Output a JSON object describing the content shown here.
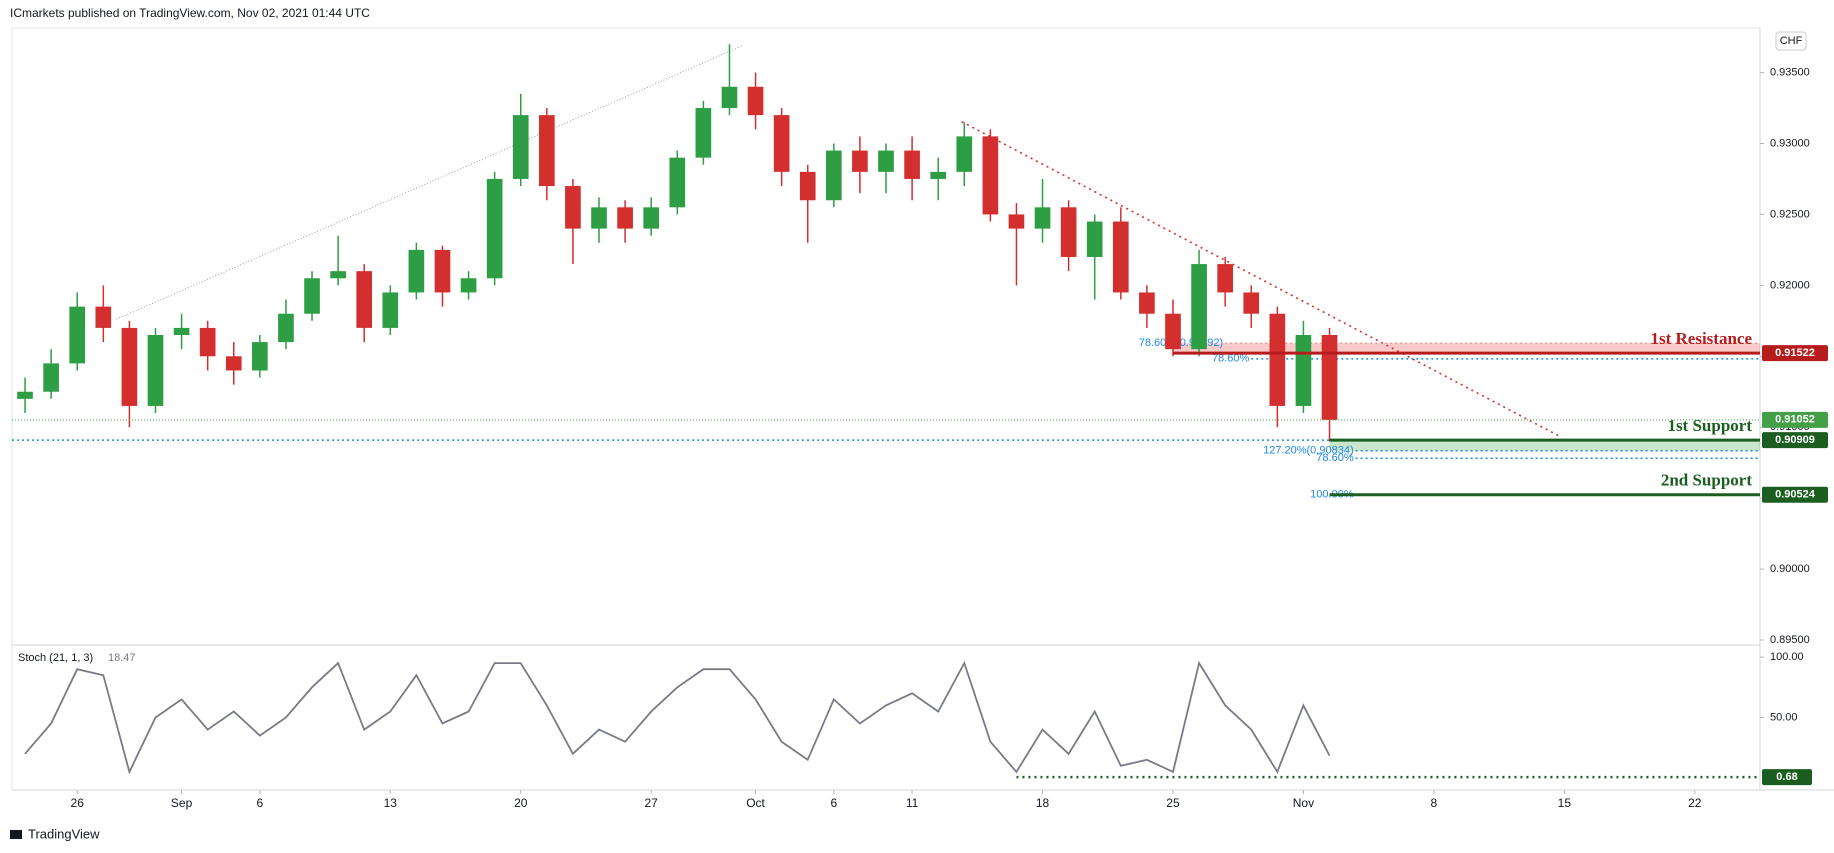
{
  "header": {
    "publisher": "ICmarkets published on TradingView.com, Nov 02, 2021 01:44 UTC",
    "currency": "CHF",
    "brand": "TradingView"
  },
  "chart_data": [
    {
      "type": "candlestick",
      "categories": [
        null,
        null,
        "26",
        null,
        null,
        null,
        "Sep",
        null,
        null,
        "6",
        null,
        null,
        null,
        null,
        "13",
        null,
        null,
        null,
        null,
        "20",
        null,
        null,
        null,
        null,
        "27",
        null,
        null,
        null,
        "Oct",
        null,
        null,
        "6",
        null,
        null,
        "11",
        null,
        null,
        null,
        null,
        "18",
        null,
        null,
        null,
        null,
        "25",
        null,
        null,
        null,
        null,
        "Nov",
        null,
        null,
        null,
        null,
        "8",
        null,
        null,
        null,
        null,
        "15",
        null,
        null,
        null,
        null,
        "22",
        null,
        null
      ],
      "open": [
        0.912,
        0.9125,
        0.9145,
        0.9185,
        0.917,
        0.9115,
        0.9165,
        0.917,
        0.915,
        0.914,
        0.916,
        0.918,
        0.9205,
        0.921,
        0.917,
        0.9195,
        0.9225,
        0.9195,
        0.9205,
        0.9275,
        0.932,
        0.927,
        0.924,
        0.9255,
        0.924,
        0.9255,
        0.929,
        0.9325,
        0.934,
        0.932,
        0.928,
        0.926,
        0.9295,
        0.928,
        0.9295,
        0.9275,
        0.928,
        0.9305,
        0.925,
        0.924,
        0.9255,
        0.922,
        0.9245,
        0.9195,
        0.918,
        0.9155,
        0.9215,
        0.9195,
        0.918,
        0.9115,
        0.9165,
        null,
        null,
        null,
        null,
        null,
        null,
        null,
        null,
        null,
        null,
        null,
        null,
        null,
        null,
        null,
        null
      ],
      "high": [
        0.9135,
        0.9155,
        0.9195,
        0.92,
        0.9175,
        0.917,
        0.918,
        0.9175,
        0.916,
        0.9165,
        0.919,
        0.921,
        0.9235,
        0.9215,
        0.92,
        0.923,
        0.9228,
        0.921,
        0.928,
        0.9335,
        0.9325,
        0.9275,
        0.9262,
        0.926,
        0.9262,
        0.9295,
        0.933,
        0.937,
        0.935,
        0.9325,
        0.9285,
        0.93,
        0.9305,
        0.93,
        0.9305,
        0.929,
        0.9315,
        0.931,
        0.9258,
        0.9275,
        0.926,
        0.925,
        0.9255,
        0.92,
        0.919,
        0.9225,
        0.922,
        0.92,
        0.9185,
        0.9175,
        0.917,
        null,
        null,
        null,
        null,
        null,
        null,
        null,
        null,
        null,
        null,
        null,
        null,
        null,
        null,
        null,
        null
      ],
      "low": [
        0.911,
        0.912,
        0.914,
        0.916,
        0.91,
        0.911,
        0.9155,
        0.914,
        0.913,
        0.9135,
        0.9155,
        0.9175,
        0.92,
        0.916,
        0.9165,
        0.919,
        0.9185,
        0.919,
        0.92,
        0.927,
        0.926,
        0.9215,
        0.923,
        0.923,
        0.9235,
        0.925,
        0.9285,
        0.932,
        0.931,
        0.927,
        0.923,
        0.9255,
        0.9265,
        0.9265,
        0.926,
        0.926,
        0.927,
        0.9245,
        0.92,
        0.923,
        0.921,
        0.919,
        0.919,
        0.917,
        0.915,
        0.915,
        0.9185,
        0.917,
        0.91,
        0.911,
        0.909,
        null,
        null,
        null,
        null,
        null,
        null,
        null,
        null,
        null,
        null,
        null,
        null,
        null,
        null,
        null,
        null
      ],
      "close": [
        0.9125,
        0.9145,
        0.9185,
        0.917,
        0.9115,
        0.9165,
        0.917,
        0.915,
        0.914,
        0.916,
        0.918,
        0.9205,
        0.921,
        0.917,
        0.9195,
        0.9225,
        0.9195,
        0.9205,
        0.9275,
        0.932,
        0.927,
        0.924,
        0.9255,
        0.924,
        0.9255,
        0.929,
        0.9325,
        0.934,
        0.932,
        0.928,
        0.926,
        0.9295,
        0.928,
        0.9295,
        0.9275,
        0.928,
        0.9305,
        0.925,
        0.924,
        0.9255,
        0.922,
        0.9245,
        0.9195,
        0.918,
        0.9155,
        0.9215,
        0.9195,
        0.918,
        0.9115,
        0.9165,
        0.91052,
        null,
        null,
        null,
        null,
        null,
        null,
        null,
        null,
        null,
        null,
        null,
        null,
        null,
        null,
        null,
        null
      ],
      "up_color": "#2e9e44",
      "down_color": "#d32f2f",
      "last_color": "#43a047",
      "ylim": [
        0.895,
        0.938
      ],
      "yticks": [
        {
          "value": 0.895,
          "label": "0.89500"
        },
        {
          "value": 0.9,
          "label": "0.90000"
        },
        {
          "value": 0.905,
          "label": "0.90500"
        },
        {
          "value": 0.91,
          "label": "0.91000"
        },
        {
          "value": 0.915,
          "label": "0.91500"
        },
        {
          "value": 0.92,
          "label": "0.92000"
        },
        {
          "value": 0.925,
          "label": "0.92500"
        },
        {
          "value": 0.93,
          "label": "0.93000"
        },
        {
          "value": 0.935,
          "label": "0.93500"
        }
      ],
      "levels": [
        {
          "label": "1st Resistance",
          "value": 0.91522,
          "color": "#b71c1c",
          "from": 44,
          "zone_to": 0.91592,
          "zone_color": "rgba(239,83,80,0.3)"
        },
        {
          "label": "1st Support",
          "value": 0.90909,
          "color": "#1b5e20",
          "from": 50,
          "zone_to": 0.90834,
          "zone_color": "rgba(76,175,80,0.3)"
        },
        {
          "label": "2nd Support",
          "value": 0.90524,
          "color": "#1b5e20",
          "from": 50
        }
      ],
      "fibs": [
        {
          "label": "78.60%(0.91592)",
          "value": 0.91592,
          "from": 46,
          "color": "#ef9a9a"
        },
        {
          "label": "78.60%",
          "value": 0.91482,
          "from": 47,
          "color": "#1e88e5"
        },
        {
          "label": "127.20%(0.90834)",
          "value": 0.90834,
          "from": 51,
          "color": "#1e88e5"
        },
        {
          "label": "78.60%",
          "value": 0.90781,
          "from": 51,
          "color": "#1e88e5"
        },
        {
          "label": "100.00%",
          "value": 0.90524,
          "from": 51,
          "color": "#1e88e5"
        }
      ],
      "trendlines": [
        {
          "from": [
            3.5,
            0.91762
          ],
          "to": [
            27.5,
            0.93689
          ],
          "color": "#9e9e9e"
        },
        {
          "from": [
            35.9,
            0.93154
          ],
          "to": [
            58.8,
            0.90938
          ],
          "color": "#d32f2f"
        }
      ],
      "full_line": {
        "value": 0.90909,
        "color": "#1e88e5"
      }
    },
    {
      "type": "line",
      "title": "Stoch (21, 1, 3)",
      "color": "#787b86",
      "values": [
        20,
        45,
        90,
        85,
        5,
        50,
        65,
        40,
        55,
        35,
        50,
        75,
        95,
        40,
        55,
        85,
        45,
        55,
        95,
        95,
        60,
        20,
        40,
        30,
        55,
        75,
        90,
        90,
        65,
        30,
        15,
        65,
        45,
        60,
        70,
        55,
        95,
        30,
        5,
        40,
        20,
        55,
        10,
        15,
        5,
        95,
        60,
        40,
        5,
        60,
        18.47
      ],
      "ylim": [
        -10,
        110
      ],
      "yticks": [
        {
          "value": 50,
          "label": "50.00"
        },
        {
          "value": 100,
          "label": "100.00"
        }
      ],
      "level": 0.68,
      "level_color": "#1b5e20"
    }
  ]
}
